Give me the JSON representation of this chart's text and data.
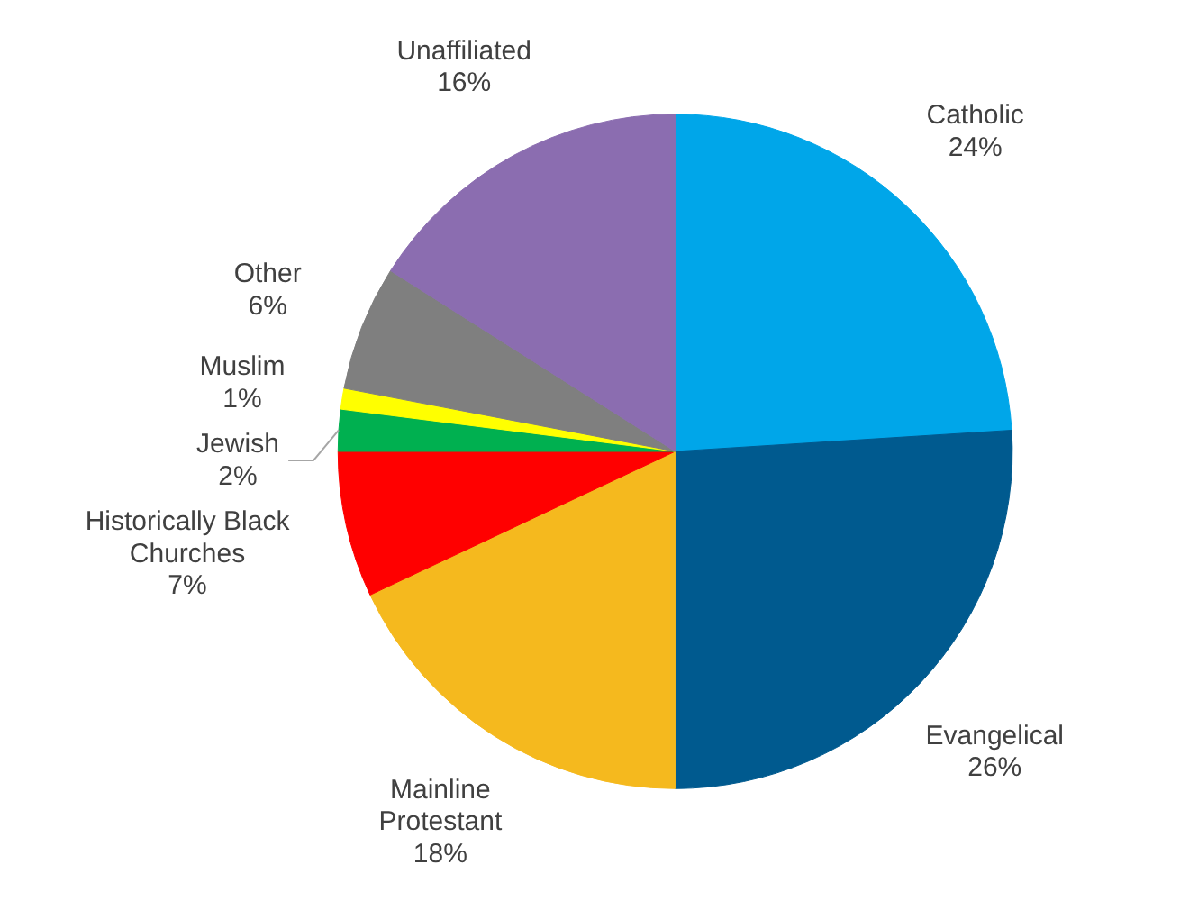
{
  "chart_data": {
    "type": "pie",
    "categories": [
      "Catholic",
      "Evangelical",
      "Mainline Protestant",
      "Historically Black Churches",
      "Jewish",
      "Muslim",
      "Other",
      "Unaffiliated"
    ],
    "values": [
      24,
      26,
      18,
      7,
      2,
      1,
      6,
      16
    ],
    "colors": [
      "#00a6e9",
      "#005a8f",
      "#f5b91e",
      "#ff0000",
      "#00b050",
      "#ffff00",
      "#7f7f7f",
      "#8b6db0"
    ],
    "value_labels": [
      "24%",
      "26%",
      "18%",
      "7%",
      "2%",
      "1%",
      "6%",
      "16%"
    ]
  }
}
